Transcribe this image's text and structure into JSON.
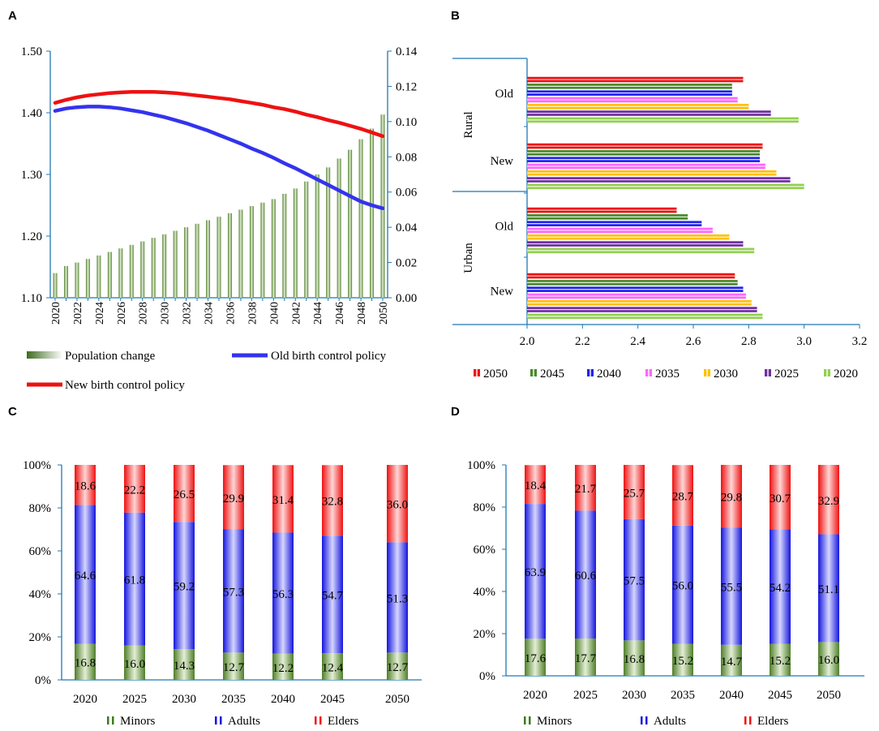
{
  "colors": {
    "axis": "#1f78b4",
    "green": "#6b9a3a",
    "greenLight": "#dfe9cf",
    "blue": "#2222ee",
    "blueLight": "#c8c8ff",
    "red": "#ee1111",
    "redLight": "#ffd0d0",
    "oldLine": "#3333ee",
    "newLine": "#ee1111"
  },
  "panels": {
    "a": "A",
    "b": "B",
    "c": "C",
    "d": "D"
  },
  "chart_data": [
    {
      "id": "A",
      "type": "line+bar",
      "x": [
        2020,
        2021,
        2022,
        2023,
        2024,
        2025,
        2026,
        2027,
        2028,
        2029,
        2030,
        2031,
        2032,
        2033,
        2034,
        2035,
        2036,
        2037,
        2038,
        2039,
        2040,
        2041,
        2042,
        2043,
        2044,
        2045,
        2046,
        2047,
        2048,
        2049,
        2050
      ],
      "x_ticks": [
        "2020",
        "2022",
        "2024",
        "2026",
        "2028",
        "2030",
        "2032",
        "2034",
        "2036",
        "2038",
        "2040",
        "2042",
        "2044",
        "2046",
        "2048",
        "2050"
      ],
      "y_left_ticks": [
        "1.10",
        "1.20",
        "1.30",
        "1.40",
        "1.50"
      ],
      "y_left_range": [
        1.1,
        1.5
      ],
      "y_right_ticks": [
        "0.00",
        "0.02",
        "0.04",
        "0.06",
        "0.08",
        "0.10",
        "0.12",
        "0.14"
      ],
      "y_right_range": [
        0,
        0.14
      ],
      "bar_series": {
        "name": "Population change",
        "axis": "right",
        "values": [
          0.014,
          0.018,
          0.02,
          0.022,
          0.024,
          0.026,
          0.028,
          0.03,
          0.032,
          0.034,
          0.036,
          0.038,
          0.04,
          0.042,
          0.044,
          0.046,
          0.048,
          0.05,
          0.052,
          0.054,
          0.056,
          0.059,
          0.062,
          0.066,
          0.07,
          0.074,
          0.079,
          0.084,
          0.09,
          0.096,
          0.104
        ]
      },
      "line_series": [
        {
          "name": "Old birth control policy",
          "axis": "left",
          "values": [
            1.403,
            1.407,
            1.409,
            1.41,
            1.41,
            1.409,
            1.407,
            1.404,
            1.401,
            1.397,
            1.393,
            1.388,
            1.383,
            1.377,
            1.371,
            1.364,
            1.357,
            1.35,
            1.342,
            1.335,
            1.327,
            1.318,
            1.31,
            1.301,
            1.292,
            1.283,
            1.274,
            1.265,
            1.256,
            1.25,
            1.245
          ]
        },
        {
          "name": "New birth control policy",
          "axis": "left",
          "values": [
            1.416,
            1.421,
            1.425,
            1.428,
            1.43,
            1.432,
            1.433,
            1.434,
            1.434,
            1.434,
            1.433,
            1.432,
            1.43,
            1.428,
            1.426,
            1.424,
            1.422,
            1.419,
            1.416,
            1.413,
            1.409,
            1.406,
            1.402,
            1.397,
            1.393,
            1.388,
            1.384,
            1.379,
            1.374,
            1.368,
            1.362
          ]
        }
      ],
      "legend": [
        "Population change",
        "Old birth control policy",
        "New birth control policy"
      ]
    },
    {
      "id": "B",
      "type": "bar-horizontal",
      "x_range": [
        2.0,
        3.2
      ],
      "x_ticks": [
        "2.0",
        "2.2",
        "2.4",
        "2.6",
        "2.8",
        "3.0",
        "3.2"
      ],
      "outer_groups": [
        "Rural",
        "Urban"
      ],
      "inner_groups": [
        "Old",
        "New"
      ],
      "series_order": [
        "2050",
        "2045",
        "2040",
        "2035",
        "2030",
        "2025",
        "2020"
      ],
      "series_colors": [
        "#ee1111",
        "#4a8a2a",
        "#2222ee",
        "#ff66ff",
        "#ffc000",
        "#7030a0",
        "#92d050"
      ],
      "groups": [
        {
          "outer": "Rural",
          "inner": "Old",
          "values": [
            2.78,
            2.74,
            2.74,
            2.76,
            2.8,
            2.88,
            2.98
          ]
        },
        {
          "outer": "Rural",
          "inner": "New",
          "values": [
            2.85,
            2.84,
            2.84,
            2.86,
            2.9,
            2.95,
            3.0
          ]
        },
        {
          "outer": "Urban",
          "inner": "Old",
          "values": [
            2.54,
            2.58,
            2.63,
            2.67,
            2.73,
            2.78,
            2.82
          ]
        },
        {
          "outer": "Urban",
          "inner": "New",
          "values": [
            2.75,
            2.76,
            2.78,
            2.79,
            2.81,
            2.83,
            2.85
          ]
        }
      ],
      "legend": [
        "2050",
        "2045",
        "2040",
        "2035",
        "2030",
        "2025",
        "2020"
      ]
    },
    {
      "id": "C",
      "type": "stacked-bar-100",
      "categories": [
        "2020",
        "2025",
        "2030",
        "2035",
        "2040",
        "2045",
        "2050"
      ],
      "y_ticks": [
        "0%",
        "20%",
        "40%",
        "60%",
        "80%",
        "100%"
      ],
      "series": [
        {
          "name": "Minors",
          "values": [
            16.8,
            16.0,
            14.3,
            12.7,
            12.2,
            12.4,
            12.7
          ],
          "labels": [
            "16.8",
            "16.0",
            "14.3",
            "12.7",
            "12.2",
            "12.4",
            "12.7"
          ]
        },
        {
          "name": "Adults",
          "values": [
            64.6,
            61.8,
            59.2,
            57.3,
            56.3,
            54.7,
            51.3
          ],
          "labels": [
            "64.6",
            "61.8",
            "59.2",
            "57.3",
            "56.3",
            "54.7",
            "51.3"
          ]
        },
        {
          "name": "Elders",
          "values": [
            18.6,
            22.2,
            26.5,
            29.9,
            31.4,
            32.8,
            36.0
          ],
          "labels": [
            "18.6",
            "22.2",
            "26.5",
            "29.9",
            "31.4",
            "32.8",
            "36.0"
          ]
        }
      ],
      "legend": [
        "Minors",
        "Adults",
        "Elders"
      ]
    },
    {
      "id": "D",
      "type": "stacked-bar-100",
      "categories": [
        "2020",
        "2025",
        "2030",
        "2035",
        "2040",
        "2045",
        "2050"
      ],
      "y_ticks": [
        "0%",
        "20%",
        "40%",
        "60%",
        "80%",
        "100%"
      ],
      "series": [
        {
          "name": "Minors",
          "values": [
            17.6,
            17.7,
            16.8,
            15.2,
            14.7,
            15.2,
            16.0
          ],
          "labels": [
            "17.6",
            "17.7",
            "16.8",
            "15.2",
            "14.7",
            "15.2",
            "16.0"
          ]
        },
        {
          "name": "Adults",
          "values": [
            63.9,
            60.6,
            57.5,
            56.0,
            55.5,
            54.2,
            51.1
          ],
          "labels": [
            "63.9",
            "60.6",
            "57.5",
            "56.0",
            "55.5",
            "54.2",
            "51.1"
          ]
        },
        {
          "name": "Elders",
          "values": [
            18.4,
            21.7,
            25.7,
            28.7,
            29.8,
            30.7,
            32.9
          ],
          "labels": [
            "18.4",
            "21.7",
            "25.7",
            "28.7",
            "29.8",
            "30.7",
            "32.9"
          ]
        }
      ],
      "legend": [
        "Minors",
        "Adults",
        "Elders"
      ]
    }
  ]
}
